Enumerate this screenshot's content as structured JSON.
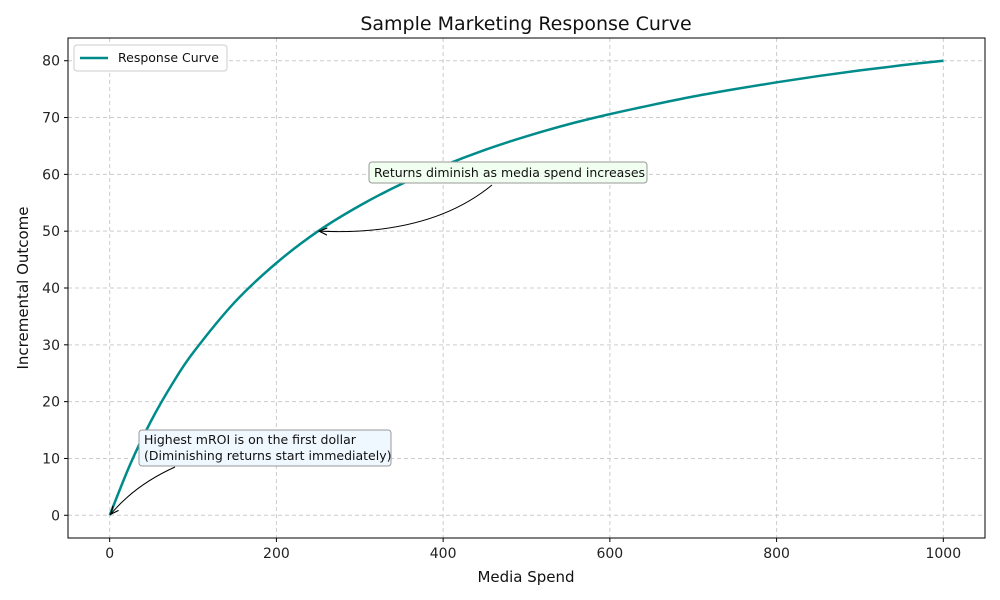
{
  "chart_data": {
    "type": "line",
    "title": "Sample Marketing Response Curve",
    "xlabel": "Media Spend",
    "ylabel": "Incremental Outcome",
    "xlim": [
      -50,
      1050
    ],
    "ylim": [
      -4,
      84
    ],
    "xticks": [
      0,
      200,
      400,
      600,
      800,
      1000
    ],
    "yticks": [
      0,
      10,
      20,
      30,
      40,
      50,
      60,
      70,
      80
    ],
    "grid": true,
    "grid_style": "dashed",
    "legend": "top-left",
    "series": [
      {
        "name": "Response Curve",
        "color": "#008b8b",
        "x": [
          0,
          25,
          50,
          75,
          100,
          150,
          200,
          250,
          300,
          350,
          400,
          450,
          500,
          550,
          600,
          650,
          700,
          750,
          800,
          850,
          900,
          950,
          1000
        ],
        "y": [
          0,
          9.1,
          16.7,
          23.1,
          28.6,
          37.5,
          44.4,
          50.0,
          54.5,
          58.3,
          61.5,
          64.3,
          66.7,
          68.8,
          70.6,
          72.2,
          73.7,
          75.0,
          76.2,
          77.3,
          78.3,
          79.2,
          80.0
        ]
      }
    ],
    "annotations": [
      {
        "text": "Returns diminish as media spend increases",
        "point": [
          250,
          50
        ],
        "text_at": [
          320,
          60
        ],
        "box_color": "#f0fff0"
      },
      {
        "text_lines": [
          "Highest mROI is on the first dollar",
          "(Diminishing returns start immediately)"
        ],
        "point": [
          0,
          0
        ],
        "text_at": [
          40,
          10
        ],
        "box_color": "#f0f8ff"
      }
    ]
  }
}
